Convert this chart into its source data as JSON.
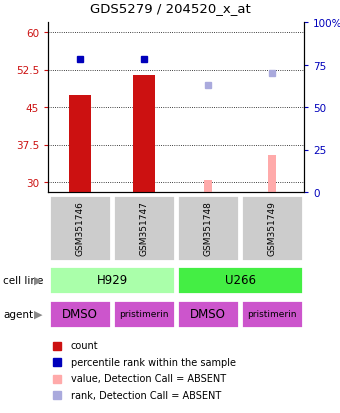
{
  "title": "GDS5279 / 204520_x_at",
  "samples": [
    "GSM351746",
    "GSM351747",
    "GSM351748",
    "GSM351749"
  ],
  "bar_values": [
    47.5,
    51.5,
    null,
    null
  ],
  "bar_absent_values": [
    null,
    null,
    30.4,
    35.5
  ],
  "rank_values": [
    78,
    78,
    null,
    null
  ],
  "rank_absent_values": [
    null,
    null,
    63,
    70
  ],
  "ylim_left": [
    28,
    62
  ],
  "ylim_right": [
    0,
    100
  ],
  "yticks_left": [
    30,
    37.5,
    45,
    52.5,
    60
  ],
  "yticks_right": [
    0,
    25,
    50,
    75,
    100
  ],
  "ytick_labels_left": [
    "30",
    "37.5",
    "45",
    "52.5",
    "60"
  ],
  "ytick_labels_right": [
    "0",
    "25",
    "50",
    "75",
    "100%"
  ],
  "cell_lines": [
    [
      "H929",
      2
    ],
    [
      "U266",
      2
    ]
  ],
  "cell_line_colors": [
    "#aaffaa",
    "#44ee44"
  ],
  "agents": [
    "DMSO",
    "pristimerin",
    "DMSO",
    "pristimerin"
  ],
  "agent_color": "#cc55cc",
  "bar_color": "#cc1111",
  "bar_absent_color": "#ffaaaa",
  "rank_color": "#0000bb",
  "rank_absent_color": "#aaaadd",
  "sample_box_color": "#cccccc",
  "legend_items": [
    {
      "label": "count",
      "color": "#cc1111"
    },
    {
      "label": "percentile rank within the sample",
      "color": "#0000bb"
    },
    {
      "label": "value, Detection Call = ABSENT",
      "color": "#ffaaaa"
    },
    {
      "label": "rank, Detection Call = ABSENT",
      "color": "#aaaadd"
    }
  ]
}
